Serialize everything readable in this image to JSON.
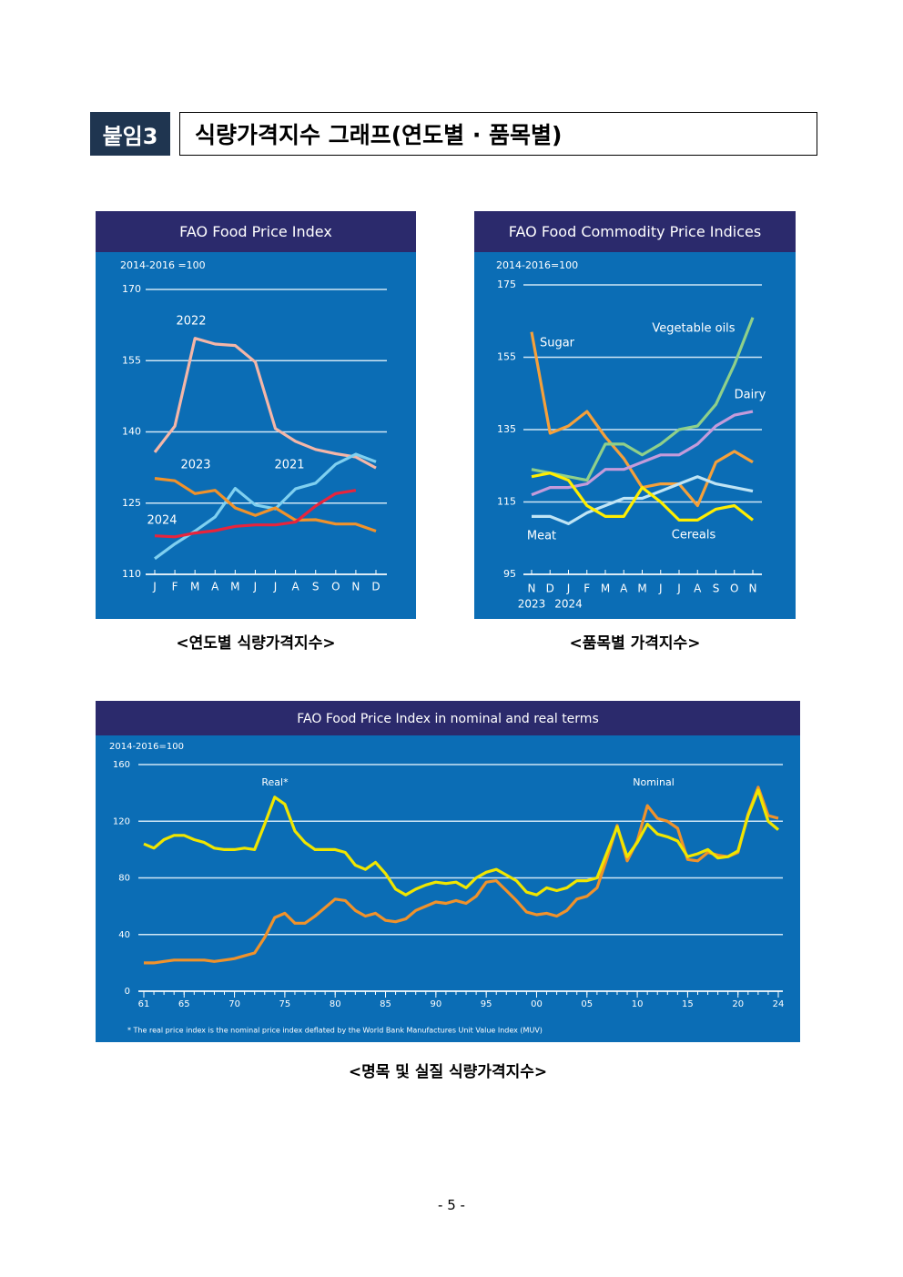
{
  "header": {
    "tag": "붙임3",
    "title": "식량가격지수 그래프(연도별 · 품목별)"
  },
  "chart_data": [
    {
      "type": "line",
      "title": "FAO Food Price Index",
      "note": "2014-2016 =100",
      "categories": [
        "J",
        "F",
        "M",
        "A",
        "M",
        "J",
        "J",
        "A",
        "S",
        "O",
        "N",
        "D"
      ],
      "ylim": [
        110,
        170
      ],
      "yticks": [
        110,
        125,
        140,
        155,
        170
      ],
      "grid": true,
      "series": [
        {
          "name": "2022",
          "color": "#f4b6a8",
          "values": [
            135.7,
            141.2,
            159.7,
            158.5,
            158.2,
            154.7,
            140.7,
            138.0,
            136.3,
            135.4,
            134.7,
            132.4
          ]
        },
        {
          "name": "2021",
          "color": "#7fd0f0",
          "values": [
            113.3,
            116.4,
            119.1,
            122.1,
            128.1,
            124.6,
            123.8,
            128.0,
            129.2,
            133.2,
            135.3,
            133.7
          ]
        },
        {
          "name": "2023",
          "color": "#f0922b",
          "values": [
            130.2,
            129.7,
            127.0,
            127.7,
            124.0,
            122.4,
            124.0,
            121.4,
            121.5,
            120.6,
            120.6,
            119.1
          ]
        },
        {
          "name": "2024",
          "color": "#e8243c",
          "values": [
            118.1,
            117.9,
            118.7,
            119.2,
            120.1,
            120.4,
            120.4,
            121.0,
            124.4,
            127.0,
            127.7,
            null
          ]
        }
      ],
      "caption": "<연도별 식량가격지수>"
    },
    {
      "type": "line",
      "title": "FAO Food Commodity Price Indices",
      "note": "2014-2016=100",
      "categories": [
        "N",
        "D",
        "J",
        "F",
        "M",
        "A",
        "M",
        "J",
        "J",
        "A",
        "S",
        "O",
        "N"
      ],
      "years": [
        "2023",
        "2024"
      ],
      "ylim": [
        95,
        175
      ],
      "yticks": [
        95,
        115,
        135,
        155,
        175
      ],
      "grid": true,
      "series": [
        {
          "name": "Sugar",
          "color": "#f5a03a",
          "values": [
            162,
            134,
            136,
            140,
            133,
            127,
            119,
            120,
            120,
            114,
            126,
            129,
            126
          ]
        },
        {
          "name": "Vegetable oils",
          "color": "#8fd08a",
          "values": [
            124,
            123,
            122,
            121,
            131,
            131,
            128,
            131,
            135,
            136,
            142,
            153,
            166
          ]
        },
        {
          "name": "Dairy",
          "color": "#c49bdb",
          "values": [
            117,
            119,
            119,
            120,
            124,
            124,
            126,
            128,
            128,
            131,
            136,
            139,
            140
          ]
        },
        {
          "name": "Meat",
          "color": "#bfe4f5",
          "values": [
            111,
            111,
            109,
            112,
            114,
            116,
            116,
            118,
            120,
            122,
            120,
            119,
            118
          ]
        },
        {
          "name": "Cereals",
          "color": "#ffee00",
          "values": [
            122,
            123,
            121,
            114,
            111,
            111,
            119,
            115,
            110,
            110,
            113,
            114,
            110
          ]
        }
      ],
      "caption": "<품목별 가격지수>"
    },
    {
      "type": "line",
      "title": "FAO Food Price Index in nominal and real terms",
      "note": "2014-2016=100",
      "x": [
        1961,
        1962,
        1963,
        1964,
        1965,
        1966,
        1967,
        1968,
        1969,
        1970,
        1971,
        1972,
        1973,
        1974,
        1975,
        1976,
        1977,
        1978,
        1979,
        1980,
        1981,
        1982,
        1983,
        1984,
        1985,
        1986,
        1987,
        1988,
        1989,
        1990,
        1991,
        1992,
        1993,
        1994,
        1995,
        1996,
        1997,
        1998,
        1999,
        2000,
        2001,
        2002,
        2003,
        2004,
        2005,
        2006,
        2007,
        2008,
        2009,
        2010,
        2011,
        2012,
        2013,
        2014,
        2015,
        2016,
        2017,
        2018,
        2019,
        2020,
        2021,
        2022,
        2023,
        2024
      ],
      "xlim": [
        1961,
        2024
      ],
      "xticks": [
        {
          "value": 1961,
          "label": "61"
        },
        {
          "value": 1965,
          "label": "65"
        },
        {
          "value": 1970,
          "label": "70"
        },
        {
          "value": 1975,
          "label": "75"
        },
        {
          "value": 1980,
          "label": "80"
        },
        {
          "value": 1985,
          "label": "85"
        },
        {
          "value": 1990,
          "label": "90"
        },
        {
          "value": 1995,
          "label": "95"
        },
        {
          "value": 2000,
          "label": "00"
        },
        {
          "value": 2005,
          "label": "05"
        },
        {
          "value": 2010,
          "label": "10"
        },
        {
          "value": 2015,
          "label": "15"
        },
        {
          "value": 2020,
          "label": "20"
        },
        {
          "value": 2024,
          "label": "24"
        }
      ],
      "ylim": [
        0,
        160
      ],
      "yticks": [
        0,
        40,
        80,
        120,
        160
      ],
      "grid": true,
      "series": [
        {
          "name": "Nominal",
          "color": "#f0922b",
          "values": [
            20,
            20,
            21,
            22,
            22,
            22,
            22,
            21,
            22,
            23,
            25,
            27,
            38,
            52,
            55,
            48,
            48,
            53,
            59,
            65,
            64,
            57,
            53,
            55,
            50,
            49,
            51,
            57,
            60,
            63,
            62,
            64,
            62,
            67,
            77,
            78,
            71,
            64,
            56,
            54,
            55,
            53,
            57,
            65,
            67,
            73,
            94,
            117,
            92,
            106,
            131,
            122,
            120,
            115,
            93,
            92,
            98,
            96,
            95,
            98,
            125,
            144,
            124,
            122
          ]
        },
        {
          "name": "Real*",
          "color": "#f0e600",
          "values": [
            104,
            101,
            107,
            110,
            110,
            107,
            105,
            101,
            100,
            100,
            101,
            100,
            118,
            137,
            132,
            113,
            105,
            100,
            100,
            100,
            98,
            89,
            86,
            91,
            83,
            72,
            68,
            72,
            75,
            77,
            76,
            77,
            73,
            80,
            84,
            86,
            82,
            78,
            70,
            68,
            73,
            71,
            73,
            78,
            78,
            80,
            98,
            116,
            95,
            105,
            118,
            111,
            109,
            106,
            95,
            97,
            100,
            94,
            95,
            99,
            124,
            142,
            120,
            114
          ]
        }
      ],
      "footnote": "* The real price index is the nominal price index deflated by the World Bank Manufactures Unit Value Index (MUV)",
      "caption": "<명목 및 실질 식량가격지수>"
    }
  ],
  "page_number": "- 5 -"
}
